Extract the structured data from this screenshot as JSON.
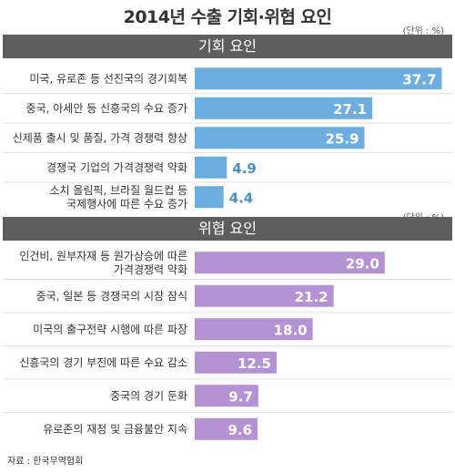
{
  "title": "2014년 수출 기회·위협 요인",
  "unit_label": "(단위 : %)",
  "source": "자료 : 한국무역협회",
  "colors": {
    "opportunity_bar": "#6daee0",
    "opportunity_value": "#4a8fc4",
    "threat_bar": "#b592d4",
    "threat_value": "#8c63b2",
    "band": "#5e5e5e"
  },
  "chart_data": [
    {
      "type": "bar",
      "orientation": "horizontal",
      "title": "기회 요인",
      "categories": [
        [
          "미국, 유로존 등 선진국의 경기회복"
        ],
        [
          "중국, 아세안 등 신흥국의 수요 증가"
        ],
        [
          "신제품 출시 및 품질, 가격 경쟁력 향상"
        ],
        [
          "경쟁국 기업의 가격경쟁력 약화"
        ],
        [
          "소치 올림픽, 브라질 월드컵 등",
          "국제행사에 따른 수요 증가"
        ]
      ],
      "values": [
        37.7,
        27.1,
        25.9,
        4.9,
        4.4
      ],
      "labels": [
        "37.7",
        "27.1",
        "25.9",
        "4.9",
        "4.4"
      ],
      "xlim": [
        0,
        40
      ]
    },
    {
      "type": "bar",
      "orientation": "horizontal",
      "title": "위협 요인",
      "categories": [
        [
          "인건비, 원부자재 등 원가상승에 따른",
          "가격경쟁력 약화"
        ],
        [
          "중국, 일본 등 경쟁국의 시장 잠식"
        ],
        [
          "미국의 출구전략 시행에 따른 파장"
        ],
        [
          "신흥국의 경기 부진에 따른 수요 감소"
        ],
        [
          "중국의 경기 둔화"
        ],
        [
          "유로존의 재정 및 금융불안 지속"
        ]
      ],
      "values": [
        29.0,
        21.2,
        18.0,
        12.5,
        9.7,
        9.6
      ],
      "labels": [
        "29.0",
        "21.2",
        "18.0",
        "12.5",
        "9.7",
        "9.6"
      ],
      "xlim": [
        0,
        30
      ]
    }
  ]
}
